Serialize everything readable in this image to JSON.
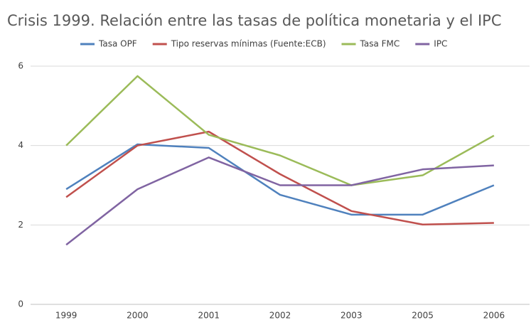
{
  "chart_data": {
    "type": "line",
    "title": "Crisis 1999. Relación entre las tasas de política monetaria y el IPC",
    "categories": [
      "1999",
      "2000",
      "2001",
      "2002",
      "2003",
      "2005",
      "2006"
    ],
    "series": [
      {
        "name": "Tasa OPF",
        "color": "#4f81bd",
        "values": [
          2.9,
          4.03,
          3.94,
          2.76,
          2.26,
          2.26,
          3.0
        ]
      },
      {
        "name": "Tipo reservas mínimas (Fuente:ECB)",
        "color": "#c0504d",
        "values": [
          2.7,
          4.0,
          4.35,
          3.28,
          2.35,
          2.01,
          2.05
        ]
      },
      {
        "name": "Tasa FMC",
        "color": "#9bbb59",
        "values": [
          4.0,
          5.75,
          4.27,
          3.75,
          3.0,
          3.25,
          4.25
        ]
      },
      {
        "name": "IPC",
        "color": "#8064a2",
        "values": [
          1.5,
          2.9,
          3.7,
          3.0,
          3.0,
          3.4,
          3.5
        ]
      }
    ],
    "ylim": [
      0,
      6
    ],
    "yticks": [
      0,
      2,
      4,
      6
    ],
    "grid": true
  }
}
